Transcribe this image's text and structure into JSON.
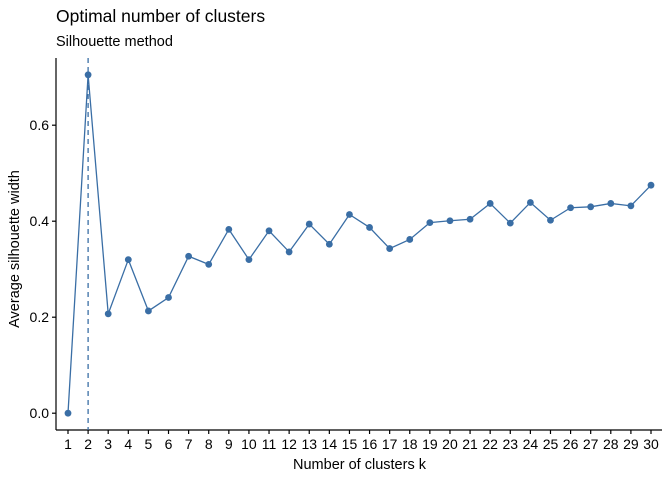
{
  "chart_data": {
    "type": "line",
    "title": "Optimal number of clusters",
    "subtitle": "Silhouette method",
    "xlabel": "Number of clusters k",
    "ylabel": "Average silhouette width",
    "categories": [
      "1",
      "2",
      "3",
      "4",
      "5",
      "6",
      "7",
      "8",
      "9",
      "10",
      "11",
      "12",
      "13",
      "14",
      "15",
      "16",
      "17",
      "18",
      "19",
      "20",
      "21",
      "22",
      "23",
      "24",
      "25",
      "26",
      "27",
      "28",
      "29",
      "30"
    ],
    "values": [
      0.0,
      0.705,
      0.207,
      0.32,
      0.213,
      0.241,
      0.327,
      0.31,
      0.383,
      0.32,
      0.38,
      0.336,
      0.394,
      0.352,
      0.414,
      0.387,
      0.343,
      0.362,
      0.397,
      0.401,
      0.404,
      0.437,
      0.396,
      0.439,
      0.402,
      0.428,
      0.43,
      0.437,
      0.432,
      0.475
    ],
    "yticks": [
      "0.0",
      "0.2",
      "0.4",
      "0.6"
    ],
    "ylim": [
      -0.035,
      0.74
    ],
    "optimal_k": 2,
    "grid": false,
    "colors": {
      "line": "#3a6ea5",
      "point": "#3a6ea5",
      "reference_line": "#3a6ea5",
      "axis": "#000000"
    }
  }
}
